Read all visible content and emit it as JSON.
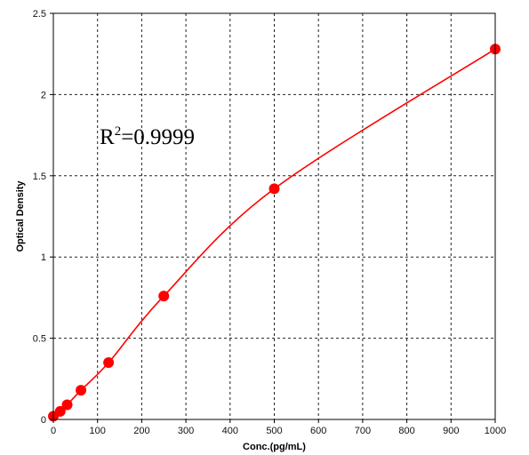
{
  "chart_data": {
    "type": "scatter",
    "xlabel": "Conc.(pg/mL)",
    "ylabel": "Optical Density",
    "xlim": [
      0,
      1000
    ],
    "ylim": [
      0,
      2.5
    ],
    "x_ticks": [
      "0",
      "100",
      "200",
      "300",
      "400",
      "500",
      "600",
      "700",
      "800",
      "900",
      "1000"
    ],
    "y_ticks": [
      "0",
      "0.5",
      "1",
      "1.5",
      "2",
      "2.5"
    ],
    "grid": true,
    "colors": {
      "series": "#ff0000",
      "grid": "#222222"
    },
    "annotation": {
      "base": "R",
      "sup": "2",
      "rest": "=0.9999"
    },
    "series": [
      {
        "points": [
          [
            0,
            0.02
          ],
          [
            15.6,
            0.05
          ],
          [
            31.25,
            0.09
          ],
          [
            62.5,
            0.18
          ],
          [
            125,
            0.35
          ],
          [
            250,
            0.76
          ],
          [
            500,
            1.42
          ],
          [
            1000,
            2.28
          ]
        ],
        "fit": "smooth-curve"
      }
    ]
  }
}
